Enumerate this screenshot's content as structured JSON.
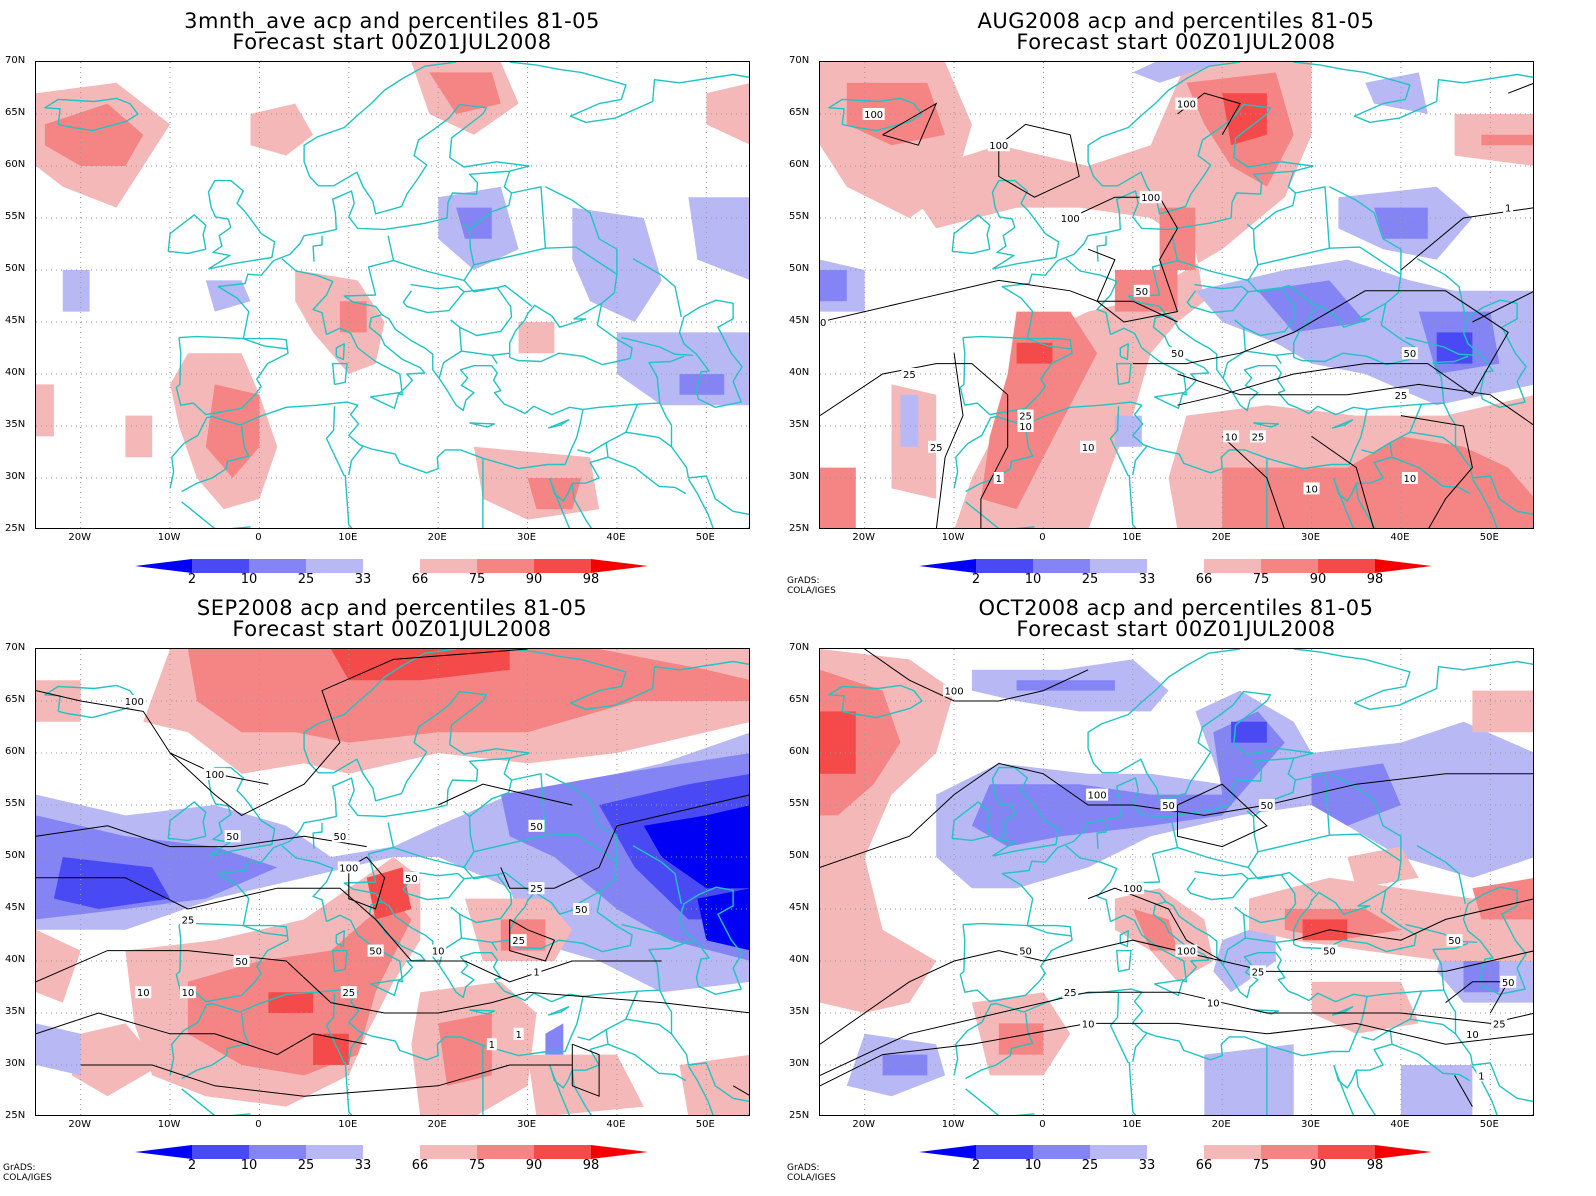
{
  "panels": [
    {
      "title1": "3mnth_ave acp and percentiles 81-05",
      "title2": "Forecast start 00Z01JUL2008",
      "credit": ""
    },
    {
      "title1": "AUG2008 acp and percentiles 81-05",
      "title2": "Forecast start 00Z01JUL2008",
      "credit": "GrADS: COLA/IGES"
    },
    {
      "title1": "SEP2008 acp and percentiles 81-05",
      "title2": "Forecast start 00Z01JUL2008",
      "credit": "GrADS: COLA/IGES"
    },
    {
      "title1": "OCT2008 acp and percentiles 81-05",
      "title2": "Forecast start 00Z01JUL2008",
      "credit": "GrADS: COLA/IGES"
    }
  ],
  "lat_labels": [
    "70N",
    "65N",
    "60N",
    "55N",
    "50N",
    "45N",
    "40N",
    "35N",
    "30N",
    "25N"
  ],
  "lon_labels": [
    "20W",
    "10W",
    "0",
    "10E",
    "20E",
    "30E",
    "40E",
    "50E"
  ],
  "colorbar": {
    "labels": [
      "2",
      "10",
      "25",
      "33",
      "66",
      "75",
      "90",
      "98"
    ],
    "colors": [
      "#0000f5",
      "#4a4af5",
      "#8484f5",
      "#b8b8f5",
      "#ffffff",
      "#f5b8b8",
      "#f58484",
      "#f54a4a",
      "#f50000"
    ]
  },
  "contour_labels": {
    "aug": [
      "100",
      "100",
      "100",
      "100",
      "100",
      "50",
      "50",
      "50",
      "50",
      "25",
      "25",
      "25",
      "25",
      "25",
      "10",
      "10",
      "10",
      "10",
      "10",
      "1",
      "1"
    ],
    "sep": [
      "100",
      "100",
      "100",
      "50",
      "50",
      "50",
      "50",
      "50",
      "50",
      "50",
      "25",
      "25",
      "25",
      "25",
      "10",
      "10",
      "10",
      "1",
      "1",
      "1"
    ],
    "oct": [
      "100",
      "100",
      "100",
      "100",
      "50",
      "50",
      "50",
      "50",
      "50",
      "50",
      "25",
      "25",
      "25",
      "10",
      "10",
      "10",
      "1"
    ]
  },
  "colors": {
    "coast": "#21c3c3",
    "contour": "#000000",
    "grid": "#999999"
  }
}
